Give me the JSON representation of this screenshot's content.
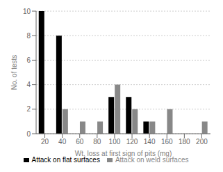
{
  "chart_data": {
    "type": "bar",
    "categories": [
      20,
      40,
      60,
      80,
      100,
      120,
      140,
      160,
      180,
      200
    ],
    "series": [
      {
        "name": "Attack on flat surfaces",
        "color": "#000000",
        "values": [
          10,
          8,
          0,
          0,
          3,
          3,
          1,
          0,
          0,
          0
        ]
      },
      {
        "name": "Attack on weld surfaces",
        "color": "#888888",
        "values": [
          0,
          2,
          1,
          1,
          4,
          2,
          1,
          2,
          0,
          1
        ]
      }
    ],
    "xlabel": "Wt. loss at first sign of pits (mg)",
    "ylabel": "No. of tests",
    "ylim": [
      0,
      10
    ],
    "yticks": [
      0,
      2,
      4,
      6,
      8,
      10
    ],
    "grid": true,
    "legend": "bottom"
  }
}
